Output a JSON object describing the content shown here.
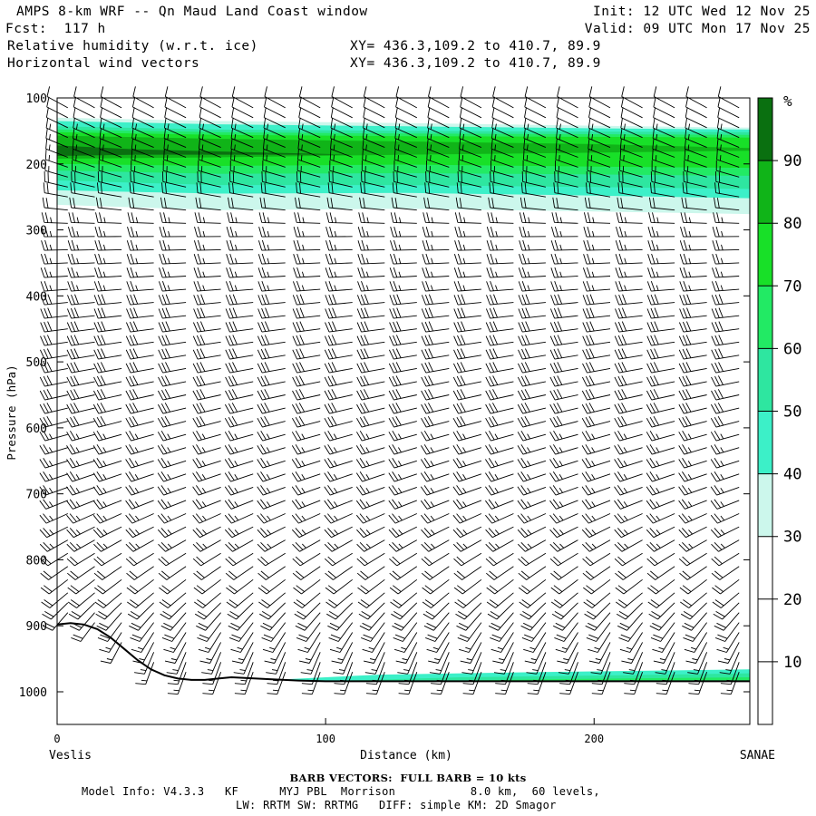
{
  "header": {
    "title": "AMPS 8-km WRF -- Qn Maud Land Coast window",
    "fcst": "Fcst:  117 h",
    "init": "Init: 12 UTC Wed 12 Nov 25",
    "valid": "Valid: 09 UTC Mon 17 Nov 25",
    "field1": "Relative humidity (w.r.t. ice)",
    "field2": "Horizontal wind vectors",
    "xy1": "XY= 436.3,109.2 to 410.7, 89.9",
    "xy2": "XY= 436.3,109.2 to 410.7, 89.9"
  },
  "footer": {
    "barb": "BARB VECTORS:  FULL BARB = 10 kts",
    "model": "Model Info: V4.3.3   KF      MYJ PBL  Morrison           8.0 km,  60 levels,",
    "physics": "LW: RRTM SW: RRTMG   DIFF: simple KM: 2D Smagor"
  },
  "chart_data": {
    "type": "cross-section",
    "title": "Relative humidity (w.r.t. ice) and horizontal wind vectors",
    "xlabel": "Distance (km)",
    "ylabel": "Pressure (hPa)",
    "xlim": [
      0,
      258
    ],
    "ylim": [
      100,
      1050
    ],
    "x_ticks": [
      0,
      100,
      200
    ],
    "y_ticks": [
      100,
      200,
      300,
      400,
      500,
      600,
      700,
      800,
      900,
      1000
    ],
    "x_end_labels": {
      "left": "Veslis",
      "right": "SANAE"
    },
    "colorbar": {
      "unit": "%",
      "ticks": [
        10,
        20,
        30,
        40,
        50,
        60,
        70,
        80,
        90
      ],
      "levels": [
        0,
        10,
        20,
        30,
        40,
        50,
        60,
        70,
        80,
        90,
        100
      ],
      "colors": [
        "#ffffff",
        "#ffffff",
        "#ffffff",
        "#ccf7ec",
        "#3cf0c8",
        "#2ee6a0",
        "#22ea64",
        "#18e028",
        "#10b418",
        "#0a7010"
      ]
    },
    "rh_bands": [
      {
        "rh": 35,
        "x": [
          0,
          60,
          130,
          200,
          258
        ],
        "p_top": [
          130,
          135,
          138,
          142,
          145
        ],
        "p_bot": [
          262,
          270,
          268,
          272,
          276
        ]
      },
      {
        "rh": 45,
        "x": [
          0,
          60,
          130,
          200,
          258
        ],
        "p_top": [
          135,
          140,
          143,
          146,
          148
        ],
        "p_bot": [
          240,
          245,
          244,
          248,
          252
        ]
      },
      {
        "rh": 55,
        "x": [
          0,
          60,
          130,
          200,
          258
        ],
        "p_top": [
          143,
          148,
          150,
          151,
          152
        ],
        "p_bot": [
          225,
          232,
          232,
          235,
          238
        ]
      },
      {
        "rh": 65,
        "x": [
          0,
          60,
          130,
          200,
          258
        ],
        "p_top": [
          148,
          152,
          154,
          155,
          156
        ],
        "p_bot": [
          210,
          215,
          214,
          216,
          218
        ]
      },
      {
        "rh": 75,
        "x": [
          0,
          60,
          130,
          200,
          258
        ],
        "p_top": [
          152,
          156,
          158,
          159,
          160
        ],
        "p_bot": [
          200,
          203,
          201,
          204,
          206
        ]
      },
      {
        "rh": 85,
        "x": [
          0,
          60,
          130,
          200,
          258
        ],
        "p_top": [
          157,
          162,
          166,
          170,
          176
        ],
        "p_bot": [
          192,
          190,
          186,
          183,
          180
        ]
      },
      {
        "rh": 95,
        "x": [
          0,
          30,
          70,
          110
        ],
        "p_top": [
          172,
          178,
          182,
          186
        ],
        "p_bot": [
          188,
          186,
          186,
          186
        ]
      },
      {
        "rh": 45,
        "x": [
          65,
          120,
          180,
          258
        ],
        "p_top": [
          985,
          974,
          970,
          966
        ],
        "p_bot": [
          985,
          985,
          985,
          985
        ]
      },
      {
        "rh": 55,
        "x": [
          90,
          150,
          210,
          258
        ],
        "p_top": [
          985,
          978,
          975,
          972
        ],
        "p_bot": [
          985,
          985,
          985,
          985
        ]
      },
      {
        "rh": 65,
        "x": [
          120,
          180,
          258
        ],
        "p_top": [
          985,
          981,
          978
        ],
        "p_bot": [
          985,
          985,
          985
        ]
      }
    ],
    "terrain": {
      "x": [
        0,
        5,
        10,
        15,
        20,
        25,
        30,
        35,
        40,
        45,
        50,
        55,
        60,
        65,
        70,
        80,
        90,
        100,
        120,
        150,
        200,
        258
      ],
      "p": [
        898,
        896,
        898,
        905,
        918,
        935,
        952,
        966,
        975,
        980,
        982,
        982,
        980,
        978,
        979,
        981,
        983,
        984,
        984,
        984,
        984,
        984
      ]
    },
    "wind_barbs": {
      "x": [
        4,
        14,
        24,
        36,
        48,
        61,
        73,
        85,
        98,
        110,
        122,
        134,
        146,
        158,
        170,
        182,
        194,
        206,
        218,
        230,
        242,
        254
      ],
      "p_levels": [
        115,
        130,
        145,
        160,
        175,
        190,
        205,
        220,
        235,
        250,
        270,
        290,
        310,
        330,
        350,
        370,
        390,
        410,
        430,
        450,
        470,
        490,
        510,
        530,
        550,
        570,
        590,
        610,
        630,
        650,
        670,
        690,
        710,
        730,
        750,
        770,
        790,
        810,
        830,
        850,
        865,
        880,
        895,
        910,
        925,
        940,
        955,
        970
      ],
      "profile_p": [
        100,
        200,
        300,
        500,
        700,
        850,
        950
      ],
      "profile_speed_kts": [
        10,
        15,
        25,
        30,
        25,
        20,
        15
      ],
      "profile_direction_deg": [
        300,
        290,
        270,
        260,
        250,
        230,
        200
      ]
    }
  }
}
